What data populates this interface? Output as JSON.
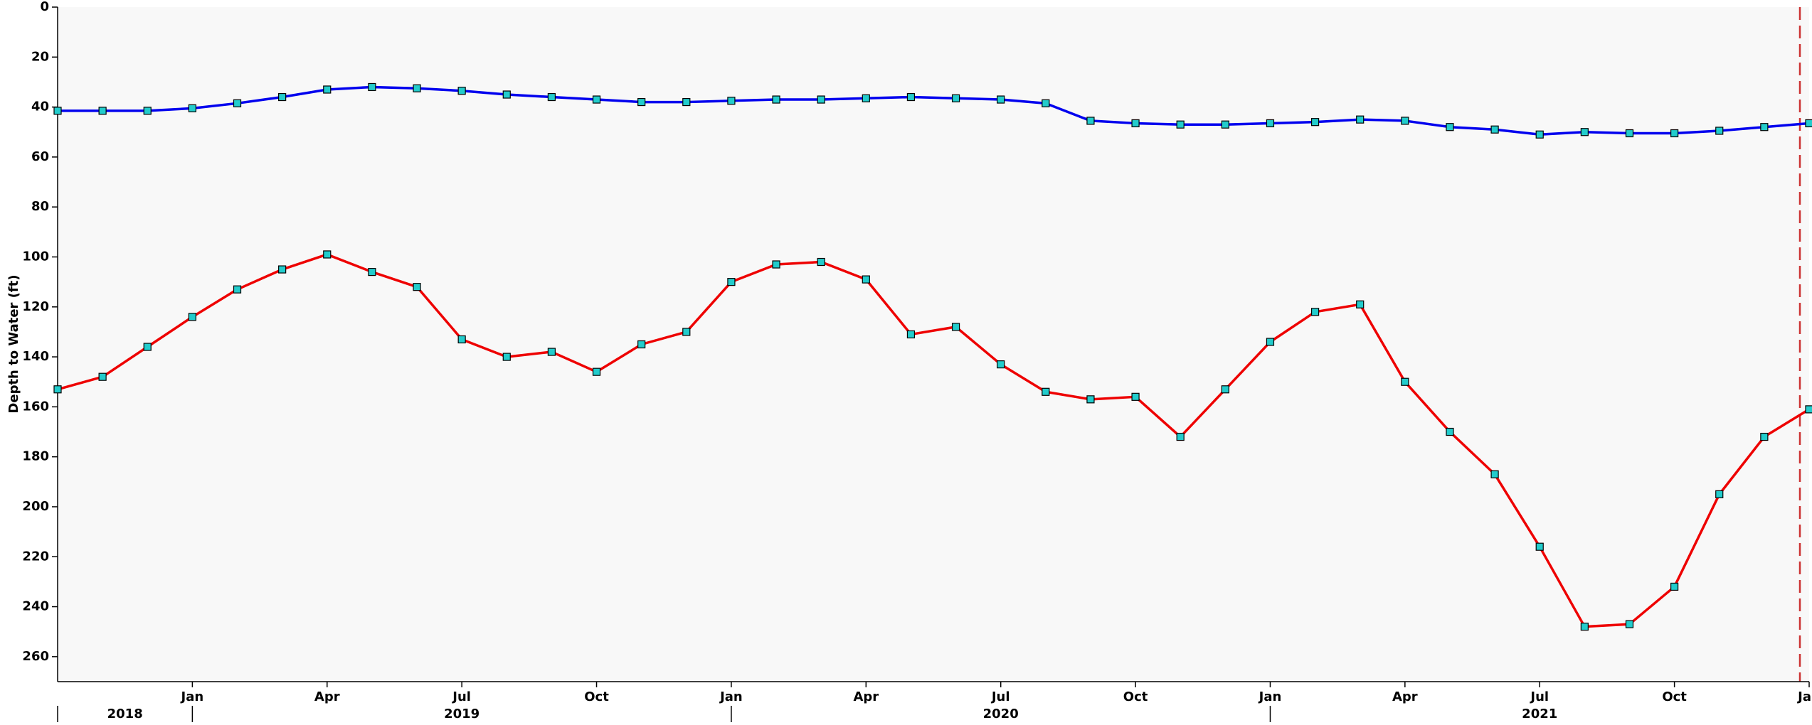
{
  "chart_data": {
    "type": "line",
    "y_label": "Depth to Water (ft)",
    "y_inverted": true,
    "ylim": [
      0,
      270
    ],
    "yticks": [
      0,
      20,
      40,
      60,
      80,
      100,
      120,
      140,
      160,
      180,
      200,
      220,
      240,
      260
    ],
    "xlim": [
      "2018-10",
      "2022-01"
    ],
    "xticks": [
      {
        "value": "2019-01",
        "label": "Jan"
      },
      {
        "value": "2019-04",
        "label": "Apr"
      },
      {
        "value": "2019-07",
        "label": "Jul"
      },
      {
        "value": "2019-10",
        "label": "Oct"
      },
      {
        "value": "2020-01",
        "label": "Jan"
      },
      {
        "value": "2020-04",
        "label": "Apr"
      },
      {
        "value": "2020-07",
        "label": "Jul"
      },
      {
        "value": "2020-10",
        "label": "Oct"
      },
      {
        "value": "2021-01",
        "label": "Jan"
      },
      {
        "value": "2021-04",
        "label": "Apr"
      },
      {
        "value": "2021-07",
        "label": "Jul"
      },
      {
        "value": "2021-10",
        "label": "Oct"
      },
      {
        "value": "2022-01",
        "label": "Jan"
      }
    ],
    "x_groups": [
      {
        "label": "2018",
        "start": "2018-10",
        "end": "2019-01"
      },
      {
        "label": "2019",
        "start": "2019-01",
        "end": "2020-01"
      },
      {
        "label": "2020",
        "start": "2020-01",
        "end": "2021-01"
      },
      {
        "label": "2021",
        "start": "2021-01",
        "end": "2022-01"
      }
    ],
    "x": [
      "2018-10",
      "2018-11",
      "2018-12",
      "2019-01",
      "2019-02",
      "2019-03",
      "2019-04",
      "2019-05",
      "2019-06",
      "2019-07",
      "2019-08",
      "2019-09",
      "2019-10",
      "2019-11",
      "2019-12",
      "2020-01",
      "2020-02",
      "2020-03",
      "2020-04",
      "2020-05",
      "2020-06",
      "2020-07",
      "2020-08",
      "2020-09",
      "2020-10",
      "2020-11",
      "2020-12",
      "2021-01",
      "2021-02",
      "2021-03",
      "2021-04",
      "2021-05",
      "2021-06",
      "2021-07",
      "2021-08",
      "2021-09",
      "2021-10",
      "2021-11",
      "2021-12",
      "2022-01"
    ],
    "marker_color": "#22cccc",
    "series": [
      {
        "color": "#0000ee",
        "values": [
          41.5,
          41.5,
          41.5,
          40.5,
          38.5,
          36,
          33,
          32,
          32.5,
          33.5,
          35,
          36,
          37,
          38,
          38,
          37.5,
          37,
          37,
          36.5,
          36,
          36.5,
          37,
          38.5,
          45.5,
          46.5,
          47,
          47,
          46.5,
          46,
          45,
          45.5,
          48,
          49,
          51,
          50,
          50.5,
          50.5,
          49.5,
          48,
          46.5
        ]
      },
      {
        "color": "#ee0000",
        "values": [
          153,
          148,
          136,
          124,
          113,
          105,
          99,
          106,
          112,
          133,
          140,
          138,
          146,
          135,
          130,
          110,
          103,
          102,
          109,
          131,
          128,
          143,
          154,
          157,
          156,
          172,
          153,
          134,
          122,
          119,
          150,
          170,
          187,
          216,
          248,
          247,
          232,
          195,
          172,
          161
        ]
      }
    ]
  }
}
